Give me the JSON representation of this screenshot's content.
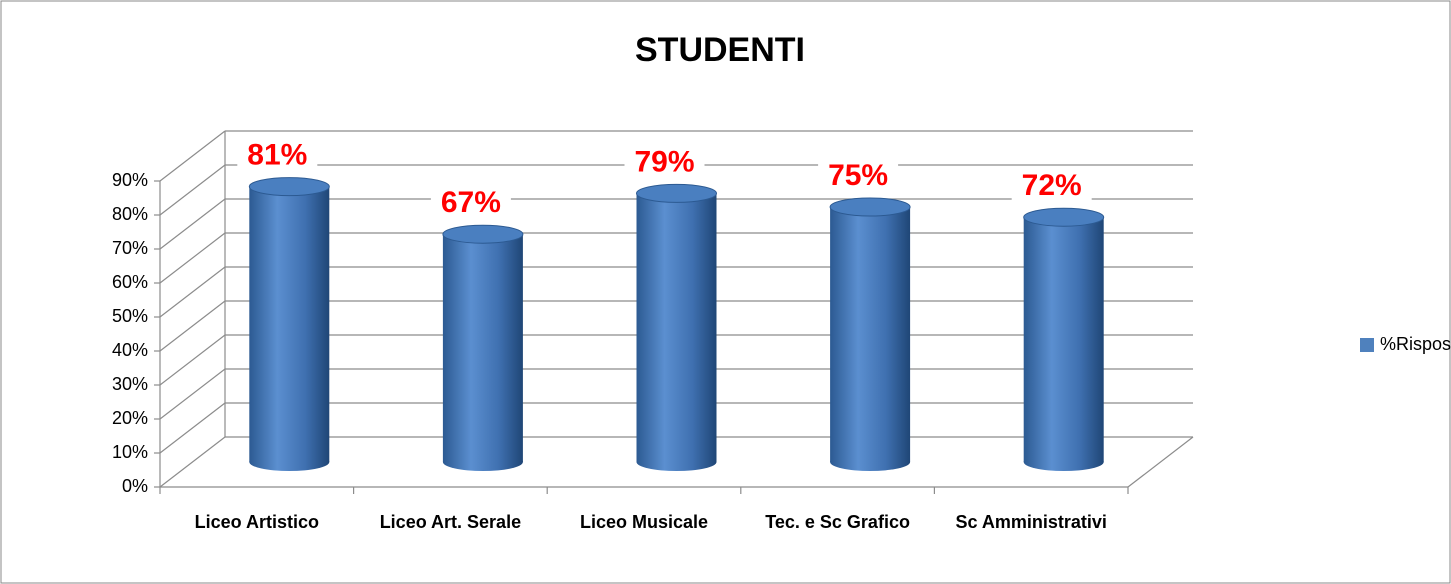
{
  "chart_data": {
    "type": "bar",
    "title": "STUDENTI",
    "categories": [
      "Liceo Artistico",
      "Liceo Art. Serale",
      "Liceo Musicale",
      "Tec. e Sc Grafico",
      "Sc Amministrativi"
    ],
    "series": [
      {
        "name": "%Risposte",
        "color": "#4f81bd",
        "values": [
          81,
          67,
          79,
          75,
          72
        ],
        "value_labels": [
          "81%",
          "67%",
          "79%",
          "75%",
          "72%"
        ]
      }
    ],
    "ylim": [
      0,
      90
    ],
    "yticks": [
      {
        "value": 0,
        "label": "0%"
      },
      {
        "value": 10,
        "label": "10%"
      },
      {
        "value": 20,
        "label": "20%"
      },
      {
        "value": 30,
        "label": "30%"
      },
      {
        "value": 40,
        "label": "40%"
      },
      {
        "value": 50,
        "label": "50%"
      },
      {
        "value": 60,
        "label": "60%"
      },
      {
        "value": 70,
        "label": "70%"
      },
      {
        "value": 80,
        "label": "80%"
      },
      {
        "value": 90,
        "label": "90%"
      }
    ],
    "grid": true,
    "legend": "right"
  }
}
